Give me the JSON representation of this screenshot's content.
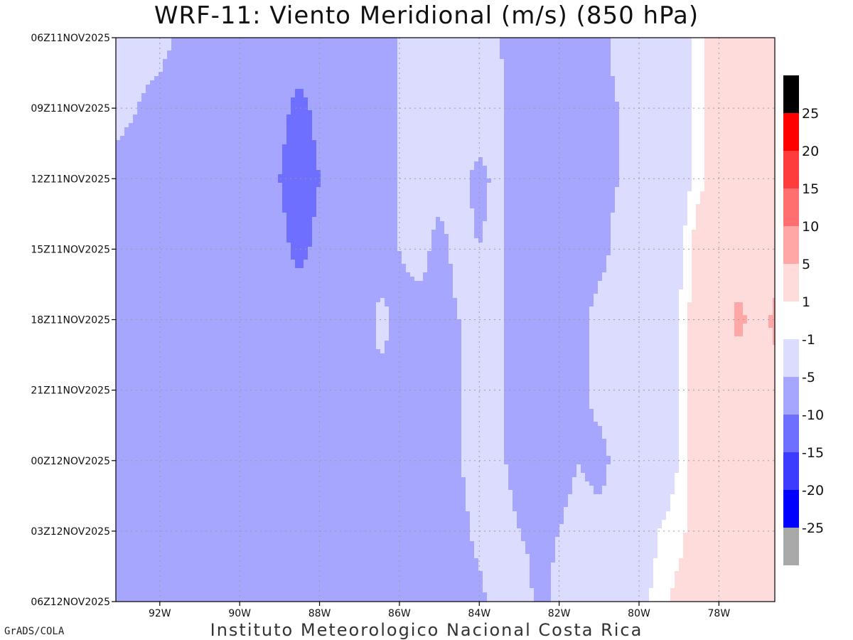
{
  "title": "WRF-11: Viento Meridional (m/s) (850 hPa)",
  "footer_left": "GrADS/COLA",
  "footer_center": "Instituto Meteorologico Nacional Costa Rica",
  "chart_data": {
    "type": "heatmap",
    "title": "WRF-11: Viento Meridional (m/s) (850 hPa)",
    "x_axis": {
      "range_deg_lon": [
        -93.1,
        -76.6
      ],
      "ticks": [
        -92,
        -90,
        -88,
        -86,
        -84,
        -82,
        -80,
        -78
      ],
      "tick_labels": [
        "92W",
        "90W",
        "88W",
        "86W",
        "84W",
        "82W",
        "80W",
        "78W"
      ]
    },
    "y_axis": {
      "range_hours": [
        0,
        24
      ],
      "ticks": [
        0,
        3,
        6,
        9,
        12,
        15,
        18,
        21,
        24
      ],
      "tick_labels": [
        "06Z11NOV2025",
        "09Z11NOV2025",
        "12Z11NOV2025",
        "15Z11NOV2025",
        "18Z11NOV2025",
        "21Z11NOV2025",
        "00Z12NOV2025",
        "03Z12NOV2025",
        "06Z12NOV2025"
      ]
    },
    "grid": true,
    "colorbar": {
      "placement": "right",
      "labels": [
        "25",
        "20",
        "15",
        "10",
        "5",
        "1",
        "-1",
        "-5",
        "-10",
        "-15",
        "-20",
        "-25"
      ],
      "colors": [
        "#000000",
        "#ff0000",
        "#ff3c3c",
        "#ff6f6f",
        "#ffa6a6",
        "#ffdcdc",
        "#ffffff",
        "#dcdcff",
        "#a6a6ff",
        "#6f6fff",
        "#3c3cff",
        "#0000ff",
        "#a8a8a8"
      ]
    },
    "contour_levels": [
      -25,
      -20,
      -15,
      -10,
      -5,
      -1,
      1,
      5,
      10,
      15,
      20,
      25
    ],
    "field_v_ms": {
      "description_rows": "rows from top (0 h) to bottom (24 h) every 3 h; columns from 93.1W to 76.6W",
      "lon": [
        -93.1,
        -92,
        -91,
        -90,
        -89,
        -88.5,
        -88,
        -87,
        -86.5,
        -86,
        -85.5,
        -85,
        -84.5,
        -84,
        -83.5,
        -83,
        -82.5,
        -82,
        -81.5,
        -81,
        -80.5,
        -80,
        -79.5,
        -79,
        -78.5,
        -78,
        -77.5,
        -77,
        -76.6
      ],
      "values": [
        [
          -4,
          -4,
          -7,
          -8,
          -8,
          -8,
          -8,
          -8,
          -7,
          -5,
          -4,
          -4,
          -3,
          -3,
          -5,
          -7,
          -8,
          -7,
          -7,
          -6,
          -4,
          -3,
          -3,
          -3,
          0,
          3,
          3,
          3,
          3
        ],
        [
          -4,
          -6,
          -8,
          -8,
          -9,
          -11,
          -9,
          -8,
          -7,
          -5,
          -4,
          -4,
          -3,
          -3,
          -4,
          -7,
          -8,
          -7,
          -7,
          -6,
          -5,
          -4,
          -3,
          -3,
          0,
          3,
          3,
          3,
          3
        ],
        [
          -6,
          -7,
          -8,
          -8,
          -10,
          -12,
          -10,
          -8,
          -7,
          -5,
          -4,
          -4,
          -4,
          -6,
          -4,
          -7,
          -8,
          -7,
          -6,
          -6,
          -5,
          -4,
          -3,
          -3,
          0,
          3,
          3,
          3,
          3
        ],
        [
          -6,
          -7,
          -8,
          -8,
          -9,
          -11,
          -9,
          -8,
          -7,
          -5,
          -4,
          -6,
          -4,
          -5,
          -4,
          -7,
          -8,
          -7,
          -6,
          -6,
          -4,
          -4,
          -3,
          -2,
          3,
          3,
          3,
          3,
          3
        ],
        [
          -6,
          -7,
          -8,
          -8,
          -8,
          -8,
          -8,
          -8,
          -4,
          -6,
          -6,
          -6,
          -5,
          -4,
          -4,
          -7,
          -8,
          -7,
          -6,
          -4,
          -4,
          -4,
          -3,
          -1,
          3,
          3,
          6,
          3,
          6
        ],
        [
          -6,
          -7,
          -8,
          -8,
          -8,
          -8,
          -8,
          -8,
          -6,
          -5,
          -6,
          -6,
          -5,
          -4,
          -4,
          -7,
          -8,
          -7,
          -6,
          -4,
          -4,
          -4,
          -3,
          -1,
          3,
          3,
          3,
          3,
          3
        ],
        [
          -5,
          -7,
          -8,
          -8,
          -8,
          -8,
          -8,
          -8,
          -7,
          -6,
          -6,
          -6,
          -5,
          -4,
          -4,
          -7,
          -6,
          -6,
          -5,
          -6,
          -4,
          -4,
          -3,
          -1,
          3,
          3,
          3,
          3,
          3
        ],
        [
          -6,
          -7,
          -8,
          -8,
          -8,
          -8,
          -8,
          -8,
          -8,
          -7,
          -6,
          -7,
          -6,
          -4,
          -3,
          -5,
          -6,
          -5,
          -4,
          -4,
          -4,
          -3,
          -1,
          0,
          3,
          3,
          3,
          3,
          3
        ],
        [
          -7,
          -8,
          -8,
          -8,
          -8,
          -8,
          -8,
          -8,
          -8,
          -8,
          -6,
          -7,
          -7,
          -6,
          -3,
          -3,
          -6,
          -4,
          -3,
          -3,
          -3,
          -2,
          0,
          2,
          3,
          3,
          3,
          3,
          3
        ]
      ]
    }
  }
}
